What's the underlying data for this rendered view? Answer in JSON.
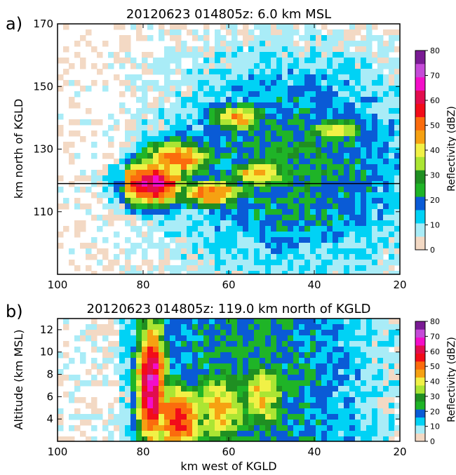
{
  "chart_data": [
    {
      "type": "heatmap",
      "panel_label": "a)",
      "title": "20120623 014805z: 6.0 km MSL",
      "xlabel": "",
      "ylabel": "km north of KGLD",
      "xlim": [
        100,
        20
      ],
      "ylim": [
        90,
        170
      ],
      "xticks": [
        "100",
        "80",
        "60",
        "40",
        "20"
      ],
      "yticks": [
        "110",
        "130",
        "150",
        "170"
      ],
      "reference_line_y": 119,
      "colorbar": {
        "label": "Reflectivity (dBZ)",
        "ticks": [
          "0",
          "10",
          "20",
          "30",
          "40",
          "50",
          "60",
          "70",
          "80"
        ],
        "range": [
          0,
          80
        ]
      },
      "cells": [
        {
          "peak_dbz": 65,
          "center": [
            78,
            119
          ],
          "radius": [
            7,
            6
          ]
        },
        {
          "peak_dbz": 52,
          "center": [
            72,
            127
          ],
          "radius": [
            7,
            5
          ]
        },
        {
          "peak_dbz": 50,
          "center": [
            64,
            116
          ],
          "radius": [
            7,
            4
          ]
        },
        {
          "peak_dbz": 45,
          "center": [
            58,
            140
          ],
          "radius": [
            6,
            4
          ]
        },
        {
          "peak_dbz": 45,
          "center": [
            53,
            122
          ],
          "radius": [
            6,
            4
          ]
        },
        {
          "peak_dbz": 42,
          "center": [
            35,
            136
          ],
          "radius": [
            6,
            3
          ]
        }
      ]
    },
    {
      "type": "heatmap",
      "panel_label": "b)",
      "title": "20120623 014805z: 119.0 km north of KGLD",
      "xlabel": "km west of KGLD",
      "ylabel": "Altitude (km MSL)",
      "xlim": [
        100,
        20
      ],
      "ylim": [
        2,
        13
      ],
      "xticks": [
        "100",
        "80",
        "60",
        "40",
        "20"
      ],
      "yticks": [
        "4",
        "6",
        "8",
        "10",
        "12"
      ],
      "colorbar": {
        "label": "Reflectivity (dBZ)",
        "ticks": [
          "0",
          "10",
          "20",
          "30",
          "40",
          "50",
          "60",
          "70",
          "80"
        ],
        "range": [
          0,
          80
        ]
      },
      "cells": [
        {
          "peak_dbz": 68,
          "center": [
            78,
            7
          ],
          "radius": [
            3,
            5
          ]
        },
        {
          "peak_dbz": 55,
          "center": [
            72,
            4
          ],
          "radius": [
            6,
            3
          ]
        },
        {
          "peak_dbz": 45,
          "center": [
            62,
            5
          ],
          "radius": [
            6,
            3
          ]
        },
        {
          "peak_dbz": 42,
          "center": [
            52,
            6
          ],
          "radius": [
            5,
            3
          ]
        }
      ]
    }
  ],
  "colorbar_colors": [
    "#f3d9c4",
    "#a9ecf7",
    "#00d2f5",
    "#0a5bd6",
    "#1fb427",
    "#1f8f22",
    "#abe533",
    "#f1f146",
    "#f6a112",
    "#fb6c0d",
    "#f20c19",
    "#e20d4e",
    "#f30ec8",
    "#c54ad8",
    "#7a1b94"
  ]
}
